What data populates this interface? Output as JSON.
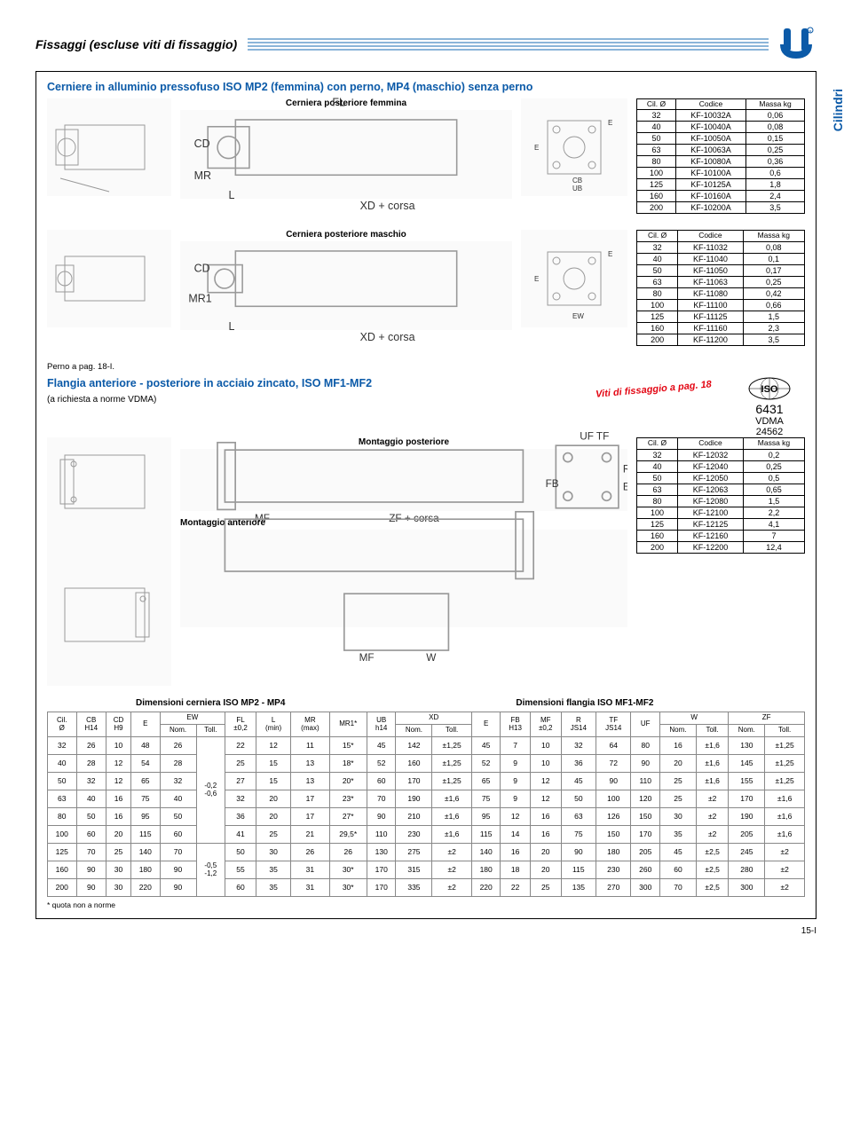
{
  "header": {
    "title": "Fissaggi (escluse viti di fissaggio)"
  },
  "side_tab": "Cilindri",
  "section1": {
    "title": "Cerniere in alluminio pressofuso ISO MP2 (femmina) con perno, MP4 (maschio) senza perno",
    "caption_f": "Cerniera posteriore femmina",
    "caption_m": "Cerniera posteriore maschio",
    "labels_f": {
      "FL": "FL",
      "CD": "CD",
      "MR": "MR",
      "L": "L",
      "XD": "XD + corsa",
      "E": "E",
      "CB": "CB",
      "UB": "UB"
    },
    "labels_m": {
      "CD": "CD",
      "MR1": "MR1",
      "L": "L",
      "XD": "XD + corsa",
      "E": "E",
      "EW": "EW"
    }
  },
  "table1": {
    "headers": [
      "Cil.\nØ",
      "Codice",
      "Massa\nkg"
    ],
    "rows": [
      [
        "32",
        "KF-10032A",
        "0,06"
      ],
      [
        "40",
        "KF-10040A",
        "0,08"
      ],
      [
        "50",
        "KF-10050A",
        "0,15"
      ],
      [
        "63",
        "KF-10063A",
        "0,25"
      ],
      [
        "80",
        "KF-10080A",
        "0,36"
      ],
      [
        "100",
        "KF-10100A",
        "0,6"
      ],
      [
        "125",
        "KF-10125A",
        "1,8"
      ],
      [
        "160",
        "KF-10160A",
        "2,4"
      ],
      [
        "200",
        "KF-10200A",
        "3,5"
      ]
    ]
  },
  "table2": {
    "headers": [
      "Cil.\nØ",
      "Codice",
      "Massa\nkg"
    ],
    "rows": [
      [
        "32",
        "KF-11032",
        "0,08"
      ],
      [
        "40",
        "KF-11040",
        "0,1"
      ],
      [
        "50",
        "KF-11050",
        "0,17"
      ],
      [
        "63",
        "KF-11063",
        "0,25"
      ],
      [
        "80",
        "KF-11080",
        "0,42"
      ],
      [
        "100",
        "KF-11100",
        "0,66"
      ],
      [
        "125",
        "KF-11125",
        "1,5"
      ],
      [
        "160",
        "KF-11160",
        "2,3"
      ],
      [
        "200",
        "KF-11200",
        "3,5"
      ]
    ]
  },
  "perno": "Perno a pag. 18-I.",
  "flange": {
    "title": "Flangia anteriore - posteriore in acciaio zincato, ISO MF1-MF2",
    "sub": "(a richiesta a norme VDMA)",
    "m_post": "Montaggio posteriore",
    "m_ant": "Montaggio anteriore",
    "viti": "Viti di fissaggio a pag. 18",
    "iso_nums": [
      "6431",
      "VDMA",
      "24562"
    ],
    "labels": {
      "UF": "UF",
      "TF": "TF",
      "MF": "MF",
      "ZF": "ZF + corsa",
      "FB": "FB",
      "R": "R",
      "E": "E",
      "W": "W"
    }
  },
  "table3": {
    "headers": [
      "Cil.\nØ",
      "Codice",
      "Massa\nkg"
    ],
    "rows": [
      [
        "32",
        "KF-12032",
        "0,2"
      ],
      [
        "40",
        "KF-12040",
        "0,25"
      ],
      [
        "50",
        "KF-12050",
        "0,5"
      ],
      [
        "63",
        "KF-12063",
        "0,65"
      ],
      [
        "80",
        "KF-12080",
        "1,5"
      ],
      [
        "100",
        "KF-12100",
        "2,2"
      ],
      [
        "125",
        "KF-12125",
        "4,1"
      ],
      [
        "160",
        "KF-12160",
        "7"
      ],
      [
        "200",
        "KF-12200",
        "12,4"
      ]
    ]
  },
  "dim_titles": {
    "left": "Dimensioni cerniera ISO MP2 - MP4",
    "right": "Dimensioni flangia ISO MF1-MF2"
  },
  "bigtable": {
    "headers": [
      "Cil.\nØ",
      "CB\nH14",
      "CD\nH9",
      "E",
      "EW\nNom.",
      "EW\nToll.",
      "FL\n±0,2",
      "L\n(min)",
      "MR\n(max)",
      "MR1*",
      "UB\nh14",
      "XD\nNom.",
      "XD\nToll.",
      "E",
      "FB\nH13",
      "MF\n±0,2",
      "R\nJS14",
      "TF\nJS14",
      "UF",
      "W\nNom.",
      "W\nToll.",
      "ZF\nNom.",
      "ZF\nToll."
    ],
    "toll_col5": [
      "",
      "",
      "-0,2\n-0,6",
      "",
      "",
      "",
      "-0,5\n-1,2",
      "",
      ""
    ],
    "rows": [
      [
        "32",
        "26",
        "10",
        "48",
        "26",
        "22",
        "12",
        "11",
        "15*",
        "45",
        "142",
        "±1,25",
        "45",
        "7",
        "10",
        "32",
        "64",
        "80",
        "16",
        "±1,6",
        "130",
        "±1,25"
      ],
      [
        "40",
        "28",
        "12",
        "54",
        "28",
        "25",
        "15",
        "13",
        "18*",
        "52",
        "160",
        "±1,25",
        "52",
        "9",
        "10",
        "36",
        "72",
        "90",
        "20",
        "±1,6",
        "145",
        "±1,25"
      ],
      [
        "50",
        "32",
        "12",
        "65",
        "32",
        "27",
        "15",
        "13",
        "20*",
        "60",
        "170",
        "±1,25",
        "65",
        "9",
        "12",
        "45",
        "90",
        "110",
        "25",
        "±1,6",
        "155",
        "±1,25"
      ],
      [
        "63",
        "40",
        "16",
        "75",
        "40",
        "32",
        "20",
        "17",
        "23*",
        "70",
        "190",
        "±1,6",
        "75",
        "9",
        "12",
        "50",
        "100",
        "120",
        "25",
        "±2",
        "170",
        "±1,6"
      ],
      [
        "80",
        "50",
        "16",
        "95",
        "50",
        "36",
        "20",
        "17",
        "27*",
        "90",
        "210",
        "±1,6",
        "95",
        "12",
        "16",
        "63",
        "126",
        "150",
        "30",
        "±2",
        "190",
        "±1,6"
      ],
      [
        "100",
        "60",
        "20",
        "115",
        "60",
        "41",
        "25",
        "21",
        "29,5*",
        "110",
        "230",
        "±1,6",
        "115",
        "14",
        "16",
        "75",
        "150",
        "170",
        "35",
        "±2",
        "205",
        "±1,6"
      ],
      [
        "125",
        "70",
        "25",
        "140",
        "70",
        "50",
        "30",
        "26",
        "26",
        "130",
        "275",
        "±2",
        "140",
        "16",
        "20",
        "90",
        "180",
        "205",
        "45",
        "±2,5",
        "245",
        "±2"
      ],
      [
        "160",
        "90",
        "30",
        "180",
        "90",
        "55",
        "35",
        "31",
        "30*",
        "170",
        "315",
        "±2",
        "180",
        "18",
        "20",
        "115",
        "230",
        "260",
        "60",
        "±2,5",
        "280",
        "±2"
      ],
      [
        "200",
        "90",
        "30",
        "220",
        "90",
        "60",
        "35",
        "31",
        "30*",
        "170",
        "335",
        "±2",
        "220",
        "22",
        "25",
        "135",
        "270",
        "300",
        "70",
        "±2,5",
        "300",
        "±2"
      ]
    ]
  },
  "footnote": "* quota non a norme",
  "page_num": "15-I",
  "colors": {
    "blue": "#0b5aa8",
    "red": "#e30613",
    "stripe": "#8bb5d9"
  }
}
